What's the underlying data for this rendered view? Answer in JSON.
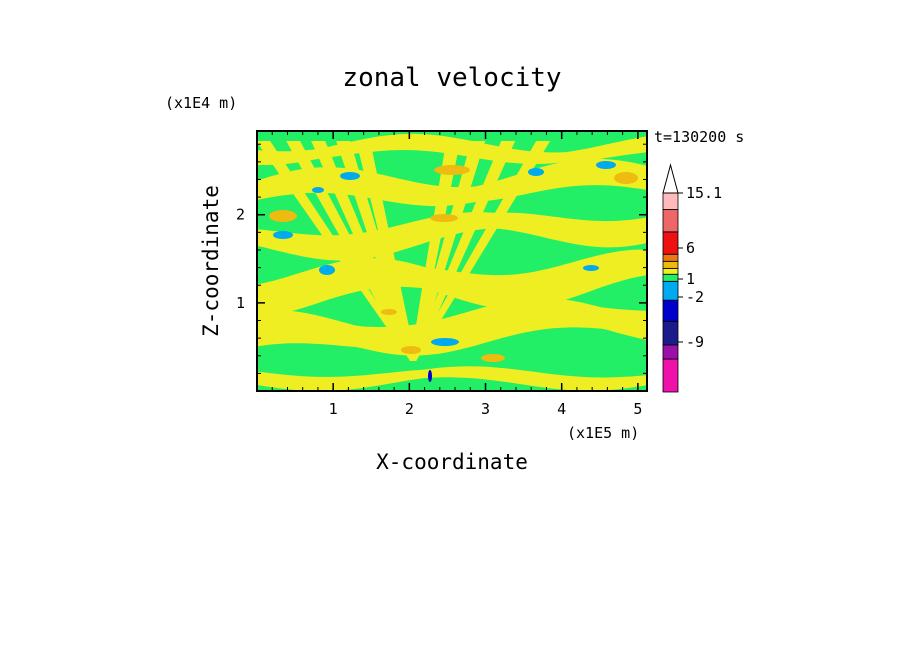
{
  "chart_data": {
    "type": "heatmap",
    "title": "zonal velocity",
    "xlabel": "X-coordinate",
    "ylabel": "Z-coordinate",
    "x_unit": "(x1E5 m)",
    "y_unit": "(x1E4 m)",
    "time_label": "t=130200 s",
    "x_ticks": [
      1,
      2,
      3,
      4,
      5
    ],
    "y_ticks": [
      1,
      2
    ],
    "xlim": [
      0,
      5.12
    ],
    "ylim": [
      0,
      2.95
    ],
    "colorbar": {
      "levels": [
        {
          "color": "#ee11aa"
        },
        {
          "color": "#9911aa"
        },
        {
          "color": "#1b1b8c"
        },
        {
          "color": "#0000cc"
        },
        {
          "color": "#00aaee"
        },
        {
          "color": "#22ee66"
        },
        {
          "color": "#eeee22"
        },
        {
          "color": "#eebb11"
        },
        {
          "color": "#ee7711"
        },
        {
          "color": "#ee1111"
        },
        {
          "color": "#ee6666"
        },
        {
          "color": "#ffbbbb"
        }
      ],
      "labels": [
        {
          "text": "15.1",
          "value": 15.1
        },
        {
          "text": "6",
          "value": 6
        },
        {
          "text": "1",
          "value": 1
        },
        {
          "text": "-2",
          "value": -2
        },
        {
          "text": "-9",
          "value": -9
        }
      ]
    },
    "field_colors": {
      "background": "#22ee66",
      "positive": "#eeee22",
      "strong_positive": "#eebb11",
      "negative": "#00aaee",
      "strong_negative": "#0000cc"
    }
  }
}
